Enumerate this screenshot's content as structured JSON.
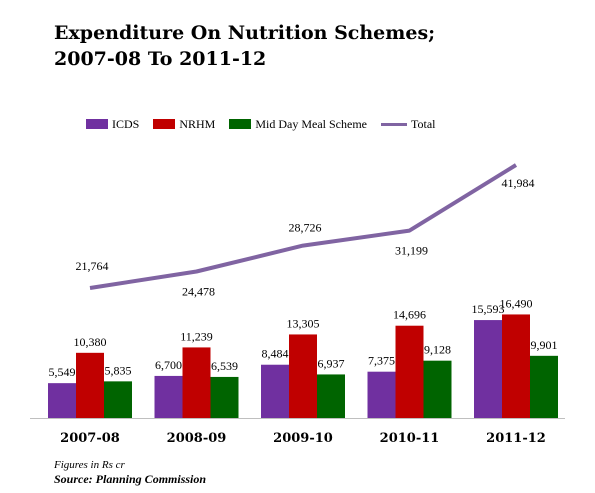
{
  "title_line1": "Expenditure On Nutrition Schemes;",
  "title_line2": "2007-08 To 2011-12",
  "footnote": "Figures in Rs cr",
  "source": "Source: Planning Commission",
  "chart_data": {
    "type": "bar",
    "categories": [
      "2007-08",
      "2008-09",
      "2009-10",
      "2010-11",
      "2011-12"
    ],
    "series": [
      {
        "name": "ICDS",
        "color": "#7030A0",
        "values": [
          5549,
          6700,
          8484,
          7375,
          15593
        ],
        "labels": [
          "5,549",
          "6,700",
          "8,484",
          "7,375",
          "15,593"
        ]
      },
      {
        "name": "NRHM",
        "color": "#C00000",
        "values": [
          10380,
          11239,
          13305,
          14696,
          16490
        ],
        "labels": [
          "10,380",
          "11,239",
          "13,305",
          "14,696",
          "16,490"
        ]
      },
      {
        "name": "Mid Day Meal Scheme",
        "color": "#006400",
        "values": [
          5835,
          6539,
          6937,
          9128,
          9901
        ],
        "labels": [
          "5,835",
          "6,539",
          "6,937",
          "9,128",
          "9,901"
        ]
      }
    ],
    "line": {
      "name": "Total",
      "color": "#8064A2",
      "values": [
        21764,
        24478,
        28726,
        31199,
        41984
      ],
      "labels": [
        "21,764",
        "24,478",
        "28,726",
        "31,199",
        "41,984"
      ]
    },
    "legend": "top"
  }
}
